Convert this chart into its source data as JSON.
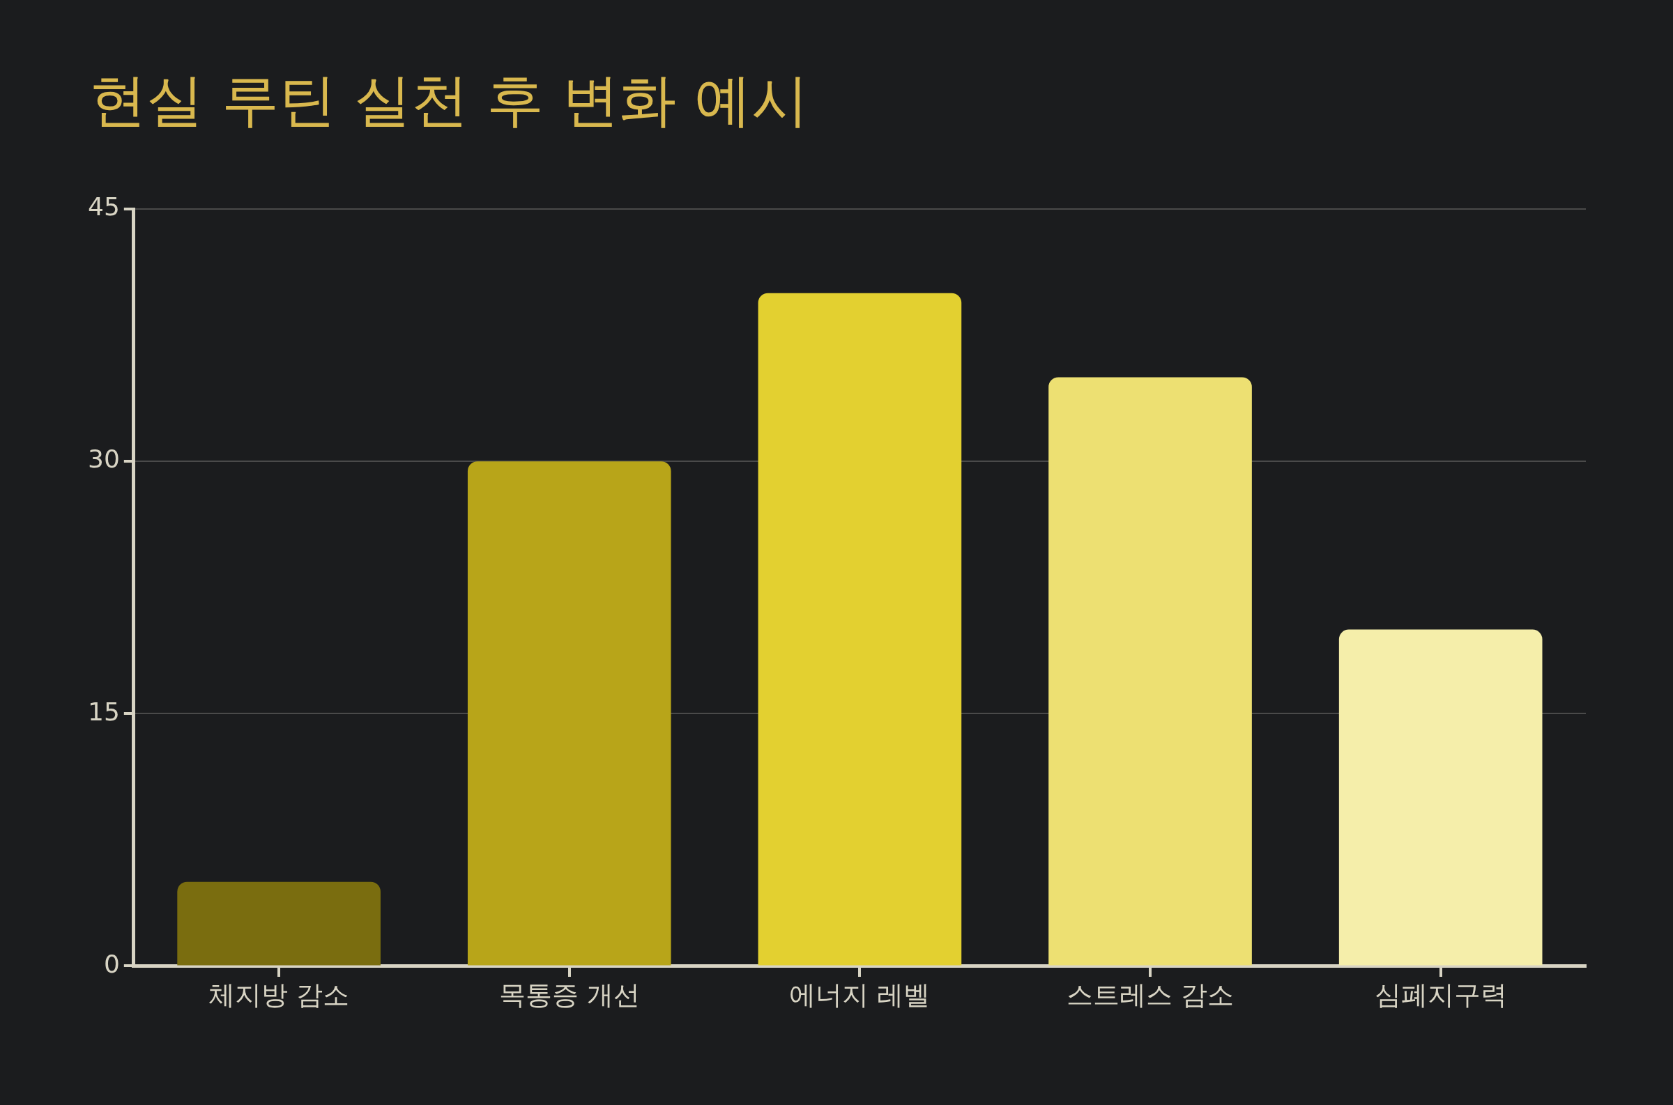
{
  "chart_data": {
    "type": "bar",
    "title": "현실 루틴 실천 후 변화 예시",
    "categories": [
      "체지방 감소",
      "목통증 개선",
      "에너지 레벨",
      "스트레스 감소",
      "심폐지구력"
    ],
    "values": [
      5,
      30,
      40,
      35,
      20
    ],
    "colors": [
      "#7a6d0f",
      "#b8a519",
      "#e3d030",
      "#ede072",
      "#f5eeaa"
    ],
    "ylim": [
      0,
      45
    ],
    "yticks": [
      0,
      15,
      30,
      45
    ],
    "grid": "y",
    "legend": false
  }
}
